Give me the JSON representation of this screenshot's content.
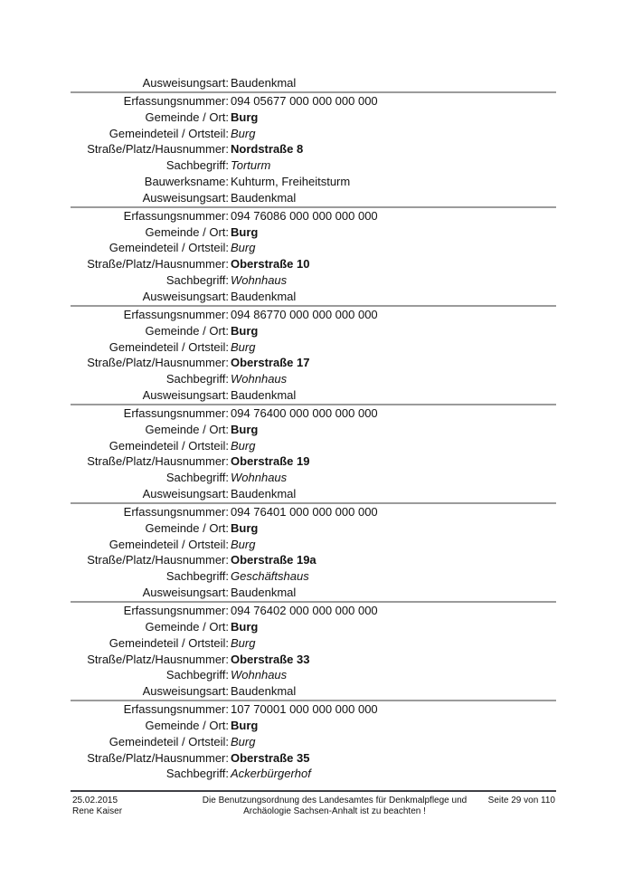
{
  "document": {
    "continuation_row": {
      "label": "Ausweisungsart:",
      "value": "Baudenkmal",
      "style": "normal"
    },
    "records": [
      {
        "rows": [
          {
            "label": "Erfassungsnummer:",
            "value": "094 05677 000 000 000 000",
            "style": "normal"
          },
          {
            "label": "Gemeinde / Ort:",
            "value": "Burg",
            "style": "bold"
          },
          {
            "label": "Gemeindeteil / Ortsteil:",
            "value": "Burg",
            "style": "italic"
          },
          {
            "label": "Straße/Platz/Hausnummer:",
            "value": "Nordstraße 8",
            "style": "bold"
          },
          {
            "label": "Sachbegriff:",
            "value": "Torturm",
            "style": "italic"
          },
          {
            "label": "Bauwerksname:",
            "value": "Kuhturm, Freiheitsturm",
            "style": "normal"
          },
          {
            "label": "Ausweisungsart:",
            "value": "Baudenkmal",
            "style": "normal"
          }
        ]
      },
      {
        "rows": [
          {
            "label": "Erfassungsnummer:",
            "value": "094 76086 000 000 000 000",
            "style": "normal"
          },
          {
            "label": "Gemeinde / Ort:",
            "value": "Burg",
            "style": "bold"
          },
          {
            "label": "Gemeindeteil / Ortsteil:",
            "value": "Burg",
            "style": "italic"
          },
          {
            "label": "Straße/Platz/Hausnummer:",
            "value": "Oberstraße 10",
            "style": "bold"
          },
          {
            "label": "Sachbegriff:",
            "value": "Wohnhaus",
            "style": "italic"
          },
          {
            "label": "Ausweisungsart:",
            "value": "Baudenkmal",
            "style": "normal"
          }
        ]
      },
      {
        "rows": [
          {
            "label": "Erfassungsnummer:",
            "value": "094 86770 000 000 000 000",
            "style": "normal"
          },
          {
            "label": "Gemeinde / Ort:",
            "value": "Burg",
            "style": "bold"
          },
          {
            "label": "Gemeindeteil / Ortsteil:",
            "value": "Burg",
            "style": "italic"
          },
          {
            "label": "Straße/Platz/Hausnummer:",
            "value": "Oberstraße 17",
            "style": "bold"
          },
          {
            "label": "Sachbegriff:",
            "value": "Wohnhaus",
            "style": "italic"
          },
          {
            "label": "Ausweisungsart:",
            "value": "Baudenkmal",
            "style": "normal"
          }
        ]
      },
      {
        "rows": [
          {
            "label": "Erfassungsnummer:",
            "value": "094 76400 000 000 000 000",
            "style": "normal"
          },
          {
            "label": "Gemeinde / Ort:",
            "value": "Burg",
            "style": "bold"
          },
          {
            "label": "Gemeindeteil / Ortsteil:",
            "value": "Burg",
            "style": "italic"
          },
          {
            "label": "Straße/Platz/Hausnummer:",
            "value": "Oberstraße 19",
            "style": "bold"
          },
          {
            "label": "Sachbegriff:",
            "value": "Wohnhaus",
            "style": "italic"
          },
          {
            "label": "Ausweisungsart:",
            "value": "Baudenkmal",
            "style": "normal"
          }
        ]
      },
      {
        "rows": [
          {
            "label": "Erfassungsnummer:",
            "value": "094 76401 000 000 000 000",
            "style": "normal"
          },
          {
            "label": "Gemeinde / Ort:",
            "value": "Burg",
            "style": "bold"
          },
          {
            "label": "Gemeindeteil / Ortsteil:",
            "value": "Burg",
            "style": "italic"
          },
          {
            "label": "Straße/Platz/Hausnummer:",
            "value": "Oberstraße 19a",
            "style": "bold"
          },
          {
            "label": "Sachbegriff:",
            "value": "Geschäftshaus",
            "style": "italic"
          },
          {
            "label": "Ausweisungsart:",
            "value": "Baudenkmal",
            "style": "normal"
          }
        ]
      },
      {
        "rows": [
          {
            "label": "Erfassungsnummer:",
            "value": "094 76402 000 000 000 000",
            "style": "normal"
          },
          {
            "label": "Gemeinde / Ort:",
            "value": "Burg",
            "style": "bold"
          },
          {
            "label": "Gemeindeteil / Ortsteil:",
            "value": "Burg",
            "style": "italic"
          },
          {
            "label": "Straße/Platz/Hausnummer:",
            "value": "Oberstraße 33",
            "style": "bold"
          },
          {
            "label": "Sachbegriff:",
            "value": "Wohnhaus",
            "style": "italic"
          },
          {
            "label": "Ausweisungsart:",
            "value": "Baudenkmal",
            "style": "normal"
          }
        ]
      },
      {
        "rows": [
          {
            "label": "Erfassungsnummer:",
            "value": "107 70001 000 000 000 000",
            "style": "normal"
          },
          {
            "label": "Gemeinde / Ort:",
            "value": "Burg",
            "style": "bold"
          },
          {
            "label": "Gemeindeteil / Ortsteil:",
            "value": "Burg",
            "style": "italic"
          },
          {
            "label": "Straße/Platz/Hausnummer:",
            "value": "Oberstraße 35",
            "style": "bold"
          },
          {
            "label": "Sachbegriff:",
            "value": "Ackerbürgerhof",
            "style": "italic"
          }
        ]
      }
    ],
    "footer": {
      "date": "25.02.2015",
      "author": "Rene Kaiser",
      "notice_line1": "Die Benutzungsordnung des Landesamtes für Denkmalpflege und",
      "notice_line2": "Archäologie Sachsen-Anhalt ist zu beachten !",
      "page_indicator": "Seite 29 von 110"
    },
    "colors": {
      "record_separator": "#9b9b9b",
      "footer_rule": "#3f3f45",
      "text": "#121212",
      "background": "#ffffff"
    }
  }
}
